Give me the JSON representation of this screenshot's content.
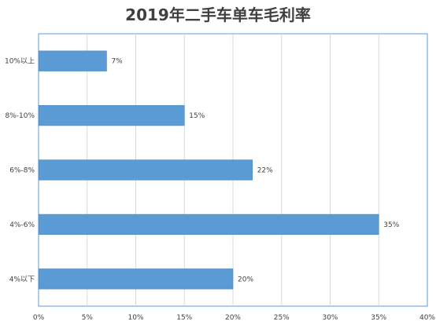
{
  "chart_data": {
    "type": "bar",
    "orientation": "horizontal",
    "title": "2019年二手车单车毛利率",
    "categories": [
      "10%以上",
      "8%-10%",
      "6%-8%",
      "4%-6%",
      "4%以下"
    ],
    "values": [
      7,
      15,
      22,
      35,
      20
    ],
    "data_labels": [
      "7%",
      "15%",
      "22%",
      "35%",
      "20%"
    ],
    "xlim": [
      0,
      40
    ],
    "x_ticks": [
      0,
      5,
      10,
      15,
      20,
      25,
      30,
      35,
      40
    ],
    "x_tick_labels": [
      "0%",
      "5%",
      "10%",
      "15%",
      "20%",
      "25%",
      "30%",
      "35%",
      "40%"
    ],
    "grid": true,
    "bar_color": "#5B9BD5",
    "plot_border_color": "#5B9BD5",
    "grid_color": "#D9D9D9"
  }
}
